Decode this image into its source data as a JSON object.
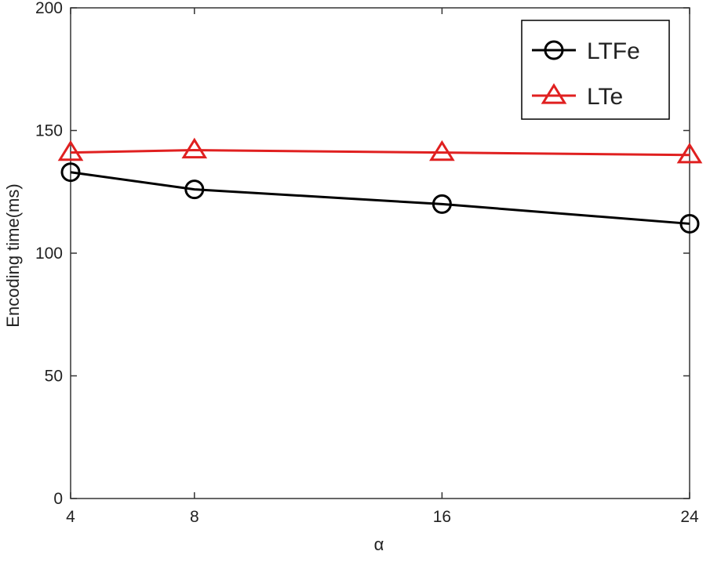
{
  "chart_data": {
    "type": "line",
    "title": "",
    "xlabel": "α",
    "ylabel": "Encoding time(ms)",
    "categories": [
      "4",
      "8",
      "16",
      "24"
    ],
    "x": [
      4,
      8,
      16,
      24
    ],
    "xlim": [
      4,
      24
    ],
    "ylim": [
      0,
      200
    ],
    "xticks": [
      "4",
      "8",
      "16",
      "24"
    ],
    "yticks": [
      "0",
      "50",
      "100",
      "150",
      "200"
    ],
    "grid": false,
    "legend": "top-right",
    "series": [
      {
        "name": "LTFe",
        "marker": "circle",
        "color": "#000000",
        "values": [
          133,
          126,
          120,
          112
        ]
      },
      {
        "name": "LTe",
        "marker": "triangle",
        "color": "#e02020",
        "values": [
          141,
          142,
          141,
          140
        ]
      }
    ]
  }
}
